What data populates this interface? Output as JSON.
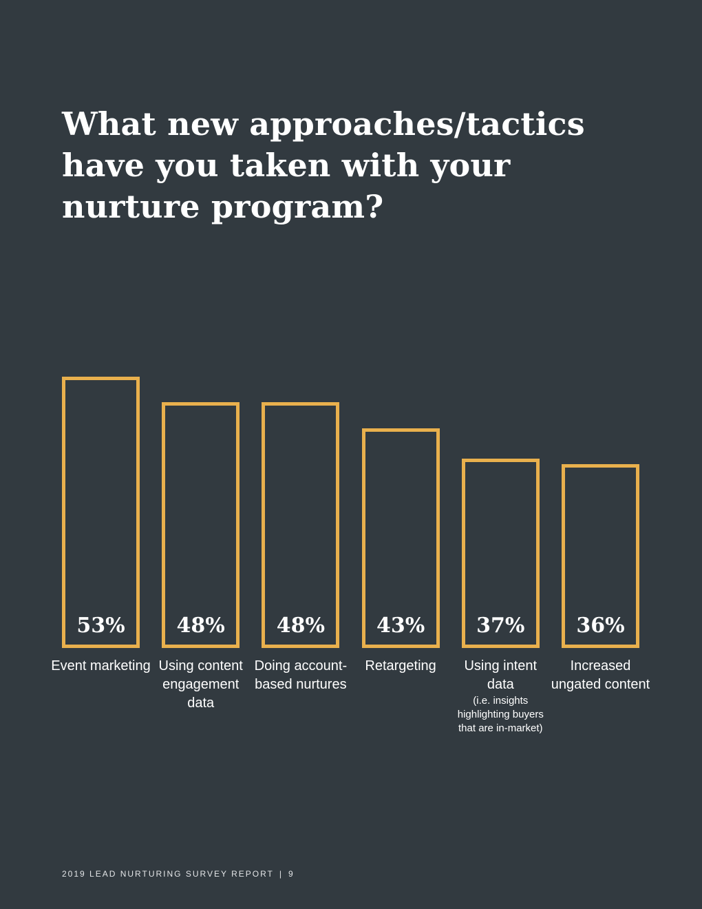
{
  "chart_data": {
    "type": "bar",
    "title": "What new approaches/tactics have you taken with your nurture program?",
    "categories": [
      "Event marketing",
      "Using content engagement data",
      "Doing account-based nurtures",
      "Retargeting",
      "Using intent data",
      "Increased ungated content"
    ],
    "category_notes": [
      "",
      "",
      "",
      "",
      "(i.e. insights highlighting buyers that are in-market)",
      ""
    ],
    "values": [
      53,
      48,
      48,
      43,
      37,
      36
    ],
    "value_labels": [
      "53%",
      "48%",
      "48%",
      "43%",
      "37%",
      "36%"
    ],
    "unit": "%",
    "colors": {
      "bar_outline": "#e9b04d",
      "background": "#323a40",
      "text": "#ffffff"
    },
    "grid": false,
    "legend": "none"
  },
  "footer": {
    "report": "2019 LEAD NURTURING SURVEY REPORT",
    "separator": "|",
    "page": "9"
  }
}
